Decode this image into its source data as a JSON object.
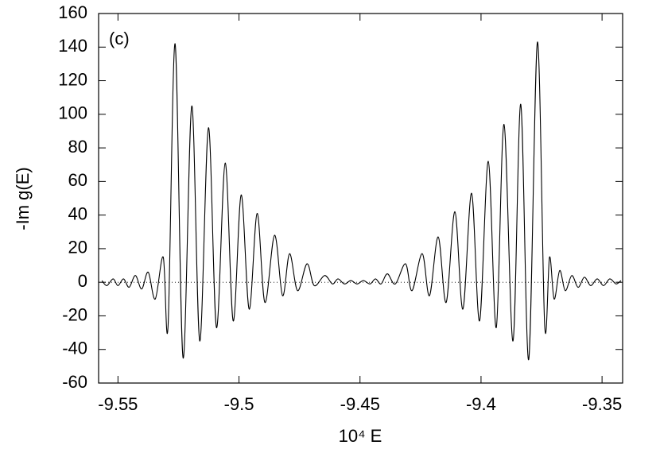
{
  "chart_data": {
    "type": "line",
    "annotation": "(c)",
    "x_label": "10⁴ E",
    "y_label": "-Im g(E)",
    "xlim": [
      -9.558,
      -9.3415
    ],
    "ylim": [
      -60,
      160
    ],
    "xticks": [
      -9.55,
      -9.5,
      -9.45,
      -9.4,
      -9.35
    ],
    "yticks": [
      -60,
      -40,
      -20,
      0,
      20,
      40,
      60,
      80,
      100,
      120,
      140,
      160
    ],
    "zero_line": true,
    "color": "#000000",
    "x": [
      -9.5566,
      -9.5546,
      -9.552,
      -9.55,
      -9.5477,
      -9.5454,
      -9.5428,
      -9.5402,
      -9.5375,
      -9.5346,
      -9.5313,
      -9.5293,
      -9.5264,
      -9.5231,
      -9.5195,
      -9.5162,
      -9.5126,
      -9.5093,
      -9.5057,
      -9.5024,
      -9.4991,
      -9.4958,
      -9.4925,
      -9.4893,
      -9.4853,
      -9.482,
      -9.4791,
      -9.4758,
      -9.4719,
      -9.4689,
      -9.4646,
      -9.4614,
      -9.4591,
      -9.4564,
      -9.4538,
      -9.4512,
      -9.4486,
      -9.4459,
      -9.4436,
      -9.4413,
      -9.4387,
      -9.4354,
      -9.4312,
      -9.4285,
      -9.4243,
      -9.4213,
      -9.4177,
      -9.4144,
      -9.4108,
      -9.4075,
      -9.4039,
      -9.4006,
      -9.397,
      -9.3937,
      -9.3905,
      -9.3868,
      -9.3836,
      -9.3803,
      -9.3767,
      -9.3737,
      -9.3717,
      -9.3698,
      -9.3675,
      -9.3652,
      -9.3625,
      -9.3599,
      -9.3573,
      -9.3547,
      -9.352,
      -9.3494,
      -9.3468,
      -9.3442,
      -9.3422
    ],
    "values": [
      1,
      -2,
      2,
      -2,
      2,
      -3,
      4,
      -4,
      6,
      -10,
      15,
      -26,
      142,
      -45,
      105,
      -35,
      92,
      -27,
      71,
      -23,
      52,
      -16,
      41,
      -12,
      28,
      -8,
      17,
      -5,
      11,
      -2,
      4,
      -1,
      2,
      -1,
      1,
      -1,
      1,
      -1,
      2,
      -1,
      5,
      -1,
      11,
      -5,
      17,
      -8,
      27,
      -12,
      42,
      -16,
      53,
      -23,
      72,
      -27,
      94,
      -35,
      106,
      -46,
      143,
      -26,
      15,
      -10,
      7,
      -5,
      4,
      -3,
      3,
      -2,
      2,
      -2,
      2,
      -1,
      1
    ]
  }
}
